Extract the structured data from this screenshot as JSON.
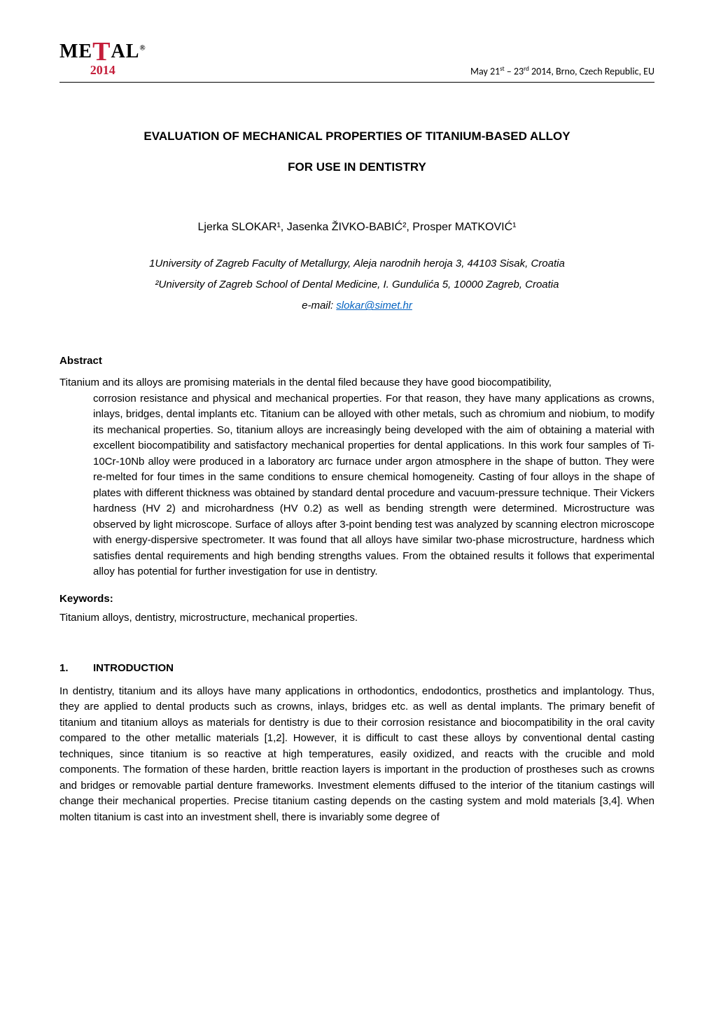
{
  "header": {
    "logo_main": "ME",
    "logo_tall": "T",
    "logo_rest": "AL",
    "logo_reg": "®",
    "logo_year": "2014",
    "conf_text": "May 21st – 23rd 2014, Brno, Czech Republic, EU"
  },
  "title": {
    "line1": "EVALUATION OF MECHANICAL PROPERTIES OF TITANIUM-BASED ALLOY",
    "line2": "FOR USE IN DENTISTRY"
  },
  "authors": "Ljerka SLOKAR¹, Jasenka ŽIVKO-BABIĆ², Prosper MATKOVIĆ¹",
  "affiliations": {
    "aff1": "1University of Zagreb Faculty of Metallurgy, Aleja narodnih heroja 3, 44103 Sisak, Croatia",
    "aff2": "²University of Zagreb School of Dental Medicine, I. Gundulića 5, 10000 Zagreb, Croatia",
    "email_label": "e-mail: ",
    "email": "slokar@simet.hr"
  },
  "abstract": {
    "heading": "Abstract",
    "text": "Titanium and its alloys are promising materials in the dental filed because they have good biocompatibility, corrosion resistance and physical and mechanical properties. For that reason, they have many applications as crowns, inlays, bridges, dental implants etc. Titanium can be alloyed with other metals, such as chromium and niobium, to modify its mechanical properties. So, titanium alloys are increasingly being developed with the aim of obtaining a material with excellent biocompatibility and satisfactory mechanical properties for dental applications. In this work four samples of Ti-10Cr-10Nb alloy were produced in a laboratory arc furnace under argon atmosphere in the shape of button. They were re-melted for four times in the same conditions to ensure chemical homogeneity. Casting of four alloys in the shape of plates with different thickness was obtained by standard dental procedure and vacuum-pressure technique. Their Vickers hardness (HV 2) and microhardness (HV 0.2) as well as bending strength were determined. Microstructure was observed by light microscope. Surface of alloys after 3-point bending test was analyzed by scanning electron microscope with energy-dispersive spectrometer. It was found that all alloys have similar two-phase microstructure, hardness which satisfies dental requirements and high bending strengths values. From the obtained results it follows that experimental alloy has potential for further investigation for use in dentistry."
  },
  "keywords": {
    "heading": "Keywords:",
    "text": "Titanium alloys, dentistry, microstructure, mechanical properties."
  },
  "section1": {
    "num": "1.",
    "heading": "INTRODUCTION",
    "para": "In dentistry, titanium and its alloys have many applications in orthodontics, endodontics, prosthetics and implantology. Thus, they are applied to dental products such as crowns, inlays, bridges etc. as well as dental implants. The primary benefit of titanium and titanium alloys as materials for dentistry is due to their corrosion resistance and biocompatibility in the oral cavity compared to the other metallic materials [1,2]. However, it is difficult to cast these alloys by conventional dental casting techniques, since titanium is so reactive at high temperatures, easily oxidized, and reacts with the crucible and mold components. The formation of these harden, brittle reaction layers is important in the production of prostheses such as crowns and bridges or removable partial denture frameworks. Investment elements diffused to the interior of the titanium castings will change their mechanical properties. Precise titanium casting depends on the casting system and mold materials [3,4]. When molten titanium is cast into an investment shell, there is invariably some degree of"
  },
  "colors": {
    "brand_red": "#c41e3a",
    "link_blue": "#0563c1",
    "text_black": "#000000",
    "background": "#ffffff"
  },
  "typography": {
    "body_font": "Arial",
    "logo_font": "Georgia",
    "title_fontsize": 17,
    "body_fontsize": 15,
    "author_fontsize": 16
  }
}
